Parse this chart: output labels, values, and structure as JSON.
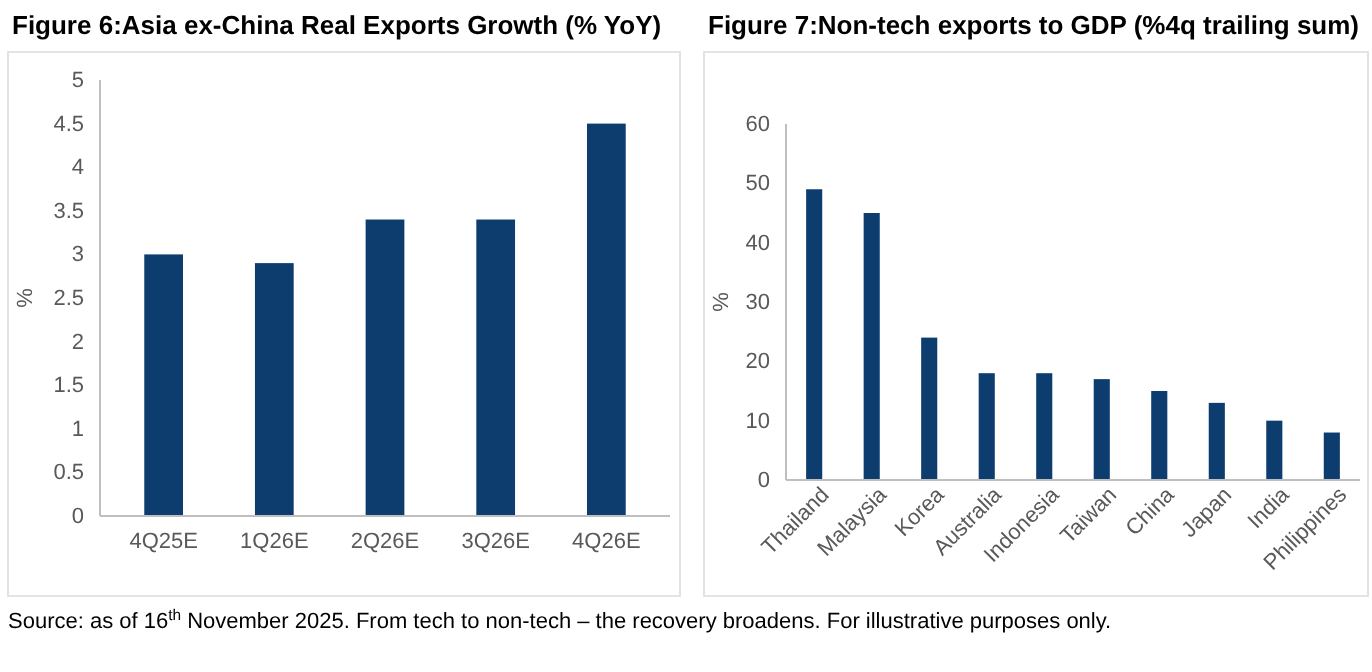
{
  "chart_data": [
    {
      "type": "bar",
      "title": "Figure 6:Asia ex-China Real Exports Growth (% YoY)",
      "ylabel": "%",
      "categories": [
        "4Q25E",
        "1Q26E",
        "2Q26E",
        "3Q26E",
        "4Q26E"
      ],
      "values": [
        3.0,
        2.9,
        3.4,
        3.4,
        4.5
      ],
      "color": "#0d3d6e",
      "ylim": [
        0,
        5
      ],
      "yticks": [
        0,
        0.5,
        1,
        1.5,
        2,
        2.5,
        3,
        3.5,
        4,
        4.5,
        5
      ],
      "annotations": [
        "Source: as of 16$^{th}$ November 2025. From tech to non-tech – the recovery broadens. For illustrative purposes only."
      ]
    },
    {
      "type": "bar",
      "title": "Figure 7:Non-tech exports to GDP (%4q trailing sum)",
      "ylabel": "%",
      "categories": [
        "Thailand",
        "Malaysia",
        "Korea",
        "Australia",
        "Indonesia",
        "Taiwan",
        "China",
        "Japan",
        "India",
        "Philippines"
      ],
      "values": [
        49,
        45,
        24,
        18,
        18,
        17,
        15,
        13,
        10,
        8
      ],
      "color": "#0d3d6e",
      "ylim": [
        0,
        60
      ],
      "yticks": [
        0,
        10,
        20,
        30,
        40,
        50,
        60
      ]
    }
  ]
}
